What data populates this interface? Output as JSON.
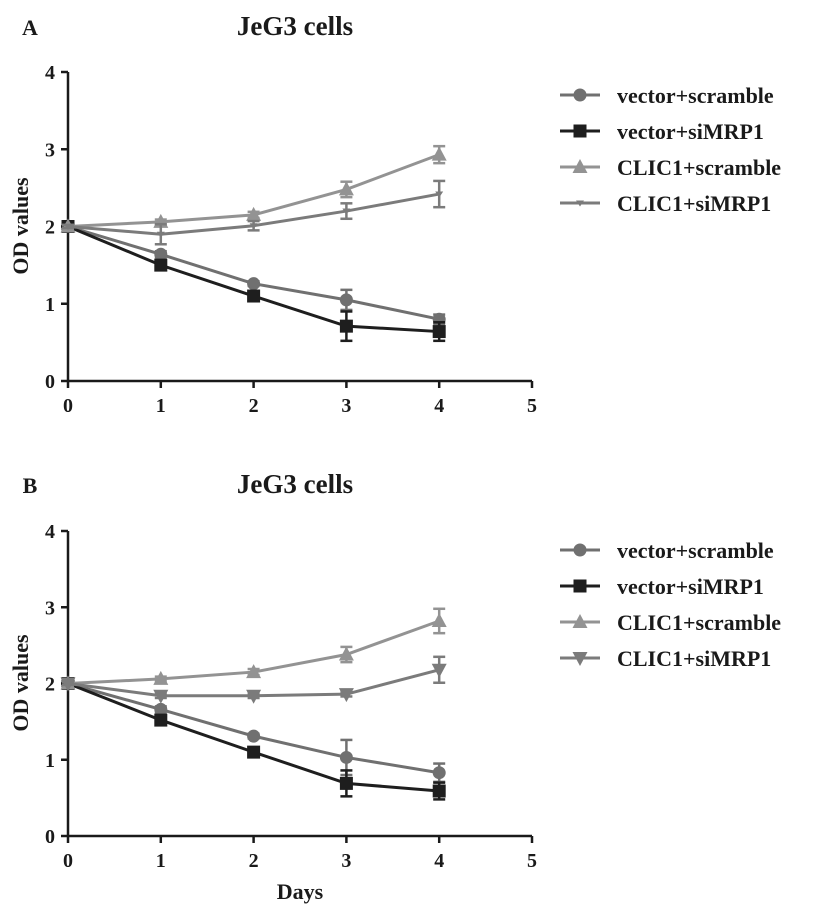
{
  "chart_data": [
    {
      "type": "line",
      "panel_label": "A",
      "title": "JeG3 cells",
      "xlabel": "",
      "ylabel": "OD values",
      "xlim": [
        0,
        5
      ],
      "ylim": [
        0,
        4
      ],
      "x_ticks": [
        0,
        1,
        2,
        3,
        4,
        5
      ],
      "y_ticks": [
        0,
        1,
        2,
        3,
        4
      ],
      "x": [
        0,
        1,
        2,
        3,
        4
      ],
      "grid": false,
      "legend": "right",
      "series": [
        {
          "name": "vector+scramble",
          "marker": "circle",
          "color": "#707070",
          "values": [
            2.0,
            1.64,
            1.26,
            1.05,
            0.8
          ],
          "errors": [
            0.02,
            0.04,
            0.03,
            0.13,
            0.06
          ]
        },
        {
          "name": "vector+siMRP1",
          "marker": "square",
          "color": "#1e1e1e",
          "values": [
            2.0,
            1.5,
            1.1,
            0.71,
            0.64
          ],
          "errors": [
            0.02,
            0.06,
            0.04,
            0.19,
            0.12
          ]
        },
        {
          "name": "CLIC1+scramble",
          "marker": "triangle-up",
          "color": "#939393",
          "values": [
            2.0,
            2.06,
            2.15,
            2.48,
            2.93
          ],
          "errors": [
            0.02,
            0.03,
            0.04,
            0.1,
            0.11
          ]
        },
        {
          "name": "CLIC1+siMRP1",
          "marker": "triangle-down-small",
          "color": "#7b7b7b",
          "values": [
            2.0,
            1.9,
            2.01,
            2.2,
            2.42
          ],
          "errors": [
            0.02,
            0.13,
            0.06,
            0.1,
            0.17
          ]
        }
      ]
    },
    {
      "type": "line",
      "panel_label": "B",
      "title": "JeG3 cells",
      "xlabel": "Days",
      "ylabel": "OD values",
      "xlim": [
        0,
        5
      ],
      "ylim": [
        0,
        4
      ],
      "x_ticks": [
        0,
        1,
        2,
        3,
        4,
        5
      ],
      "y_ticks": [
        0,
        1,
        2,
        3,
        4
      ],
      "x": [
        0,
        1,
        2,
        3,
        4
      ],
      "grid": false,
      "legend": "right",
      "series": [
        {
          "name": "vector+scramble",
          "marker": "circle",
          "color": "#707070",
          "values": [
            2.0,
            1.66,
            1.31,
            1.03,
            0.83
          ],
          "errors": [
            0.02,
            0.04,
            0.03,
            0.23,
            0.12
          ]
        },
        {
          "name": "vector+siMRP1",
          "marker": "square",
          "color": "#1e1e1e",
          "values": [
            2.0,
            1.52,
            1.1,
            0.69,
            0.59
          ],
          "errors": [
            0.02,
            0.06,
            0.04,
            0.17,
            0.11
          ]
        },
        {
          "name": "CLIC1+scramble",
          "marker": "triangle-up",
          "color": "#939393",
          "values": [
            2.0,
            2.06,
            2.15,
            2.38,
            2.82
          ],
          "errors": [
            0.02,
            0.03,
            0.04,
            0.1,
            0.16
          ]
        },
        {
          "name": "CLIC1+siMRP1",
          "marker": "triangle-down",
          "color": "#7b7b7b",
          "values": [
            2.0,
            1.84,
            1.84,
            1.86,
            2.18
          ],
          "errors": [
            0.02,
            0.03,
            0.03,
            0.03,
            0.17
          ]
        }
      ]
    }
  ]
}
